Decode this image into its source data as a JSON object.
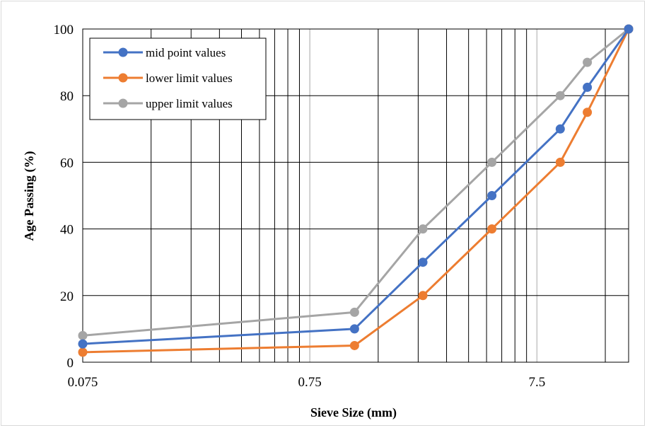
{
  "chart_data": {
    "type": "line",
    "title": "",
    "xlabel": "Sieve Size (mm)",
    "ylabel": "Age Passing (%)",
    "x_scale": "log",
    "xlim": [
      0.075,
      19
    ],
    "ylim": [
      0,
      100
    ],
    "x_tick_labels": [
      "0.075",
      "0.75",
      "7.5"
    ],
    "x_tick_values": [
      0.075,
      0.75,
      7.5
    ],
    "y_ticks": [
      0,
      20,
      40,
      60,
      80,
      100
    ],
    "grid": true,
    "legend_position": "top-left",
    "x": [
      0.075,
      1.18,
      2.36,
      4.75,
      9.5,
      12.5,
      19
    ],
    "series": [
      {
        "name": "mid point values",
        "color": "#4472C4",
        "values": [
          5.5,
          10,
          30,
          50,
          70,
          82.5,
          100
        ]
      },
      {
        "name": "lower limit values",
        "color": "#ED7D31",
        "values": [
          3,
          5,
          20,
          40,
          60,
          75,
          100
        ]
      },
      {
        "name": "upper limit values",
        "color": "#A5A5A5",
        "values": [
          8,
          15,
          40,
          60,
          80,
          90,
          100
        ]
      }
    ]
  }
}
